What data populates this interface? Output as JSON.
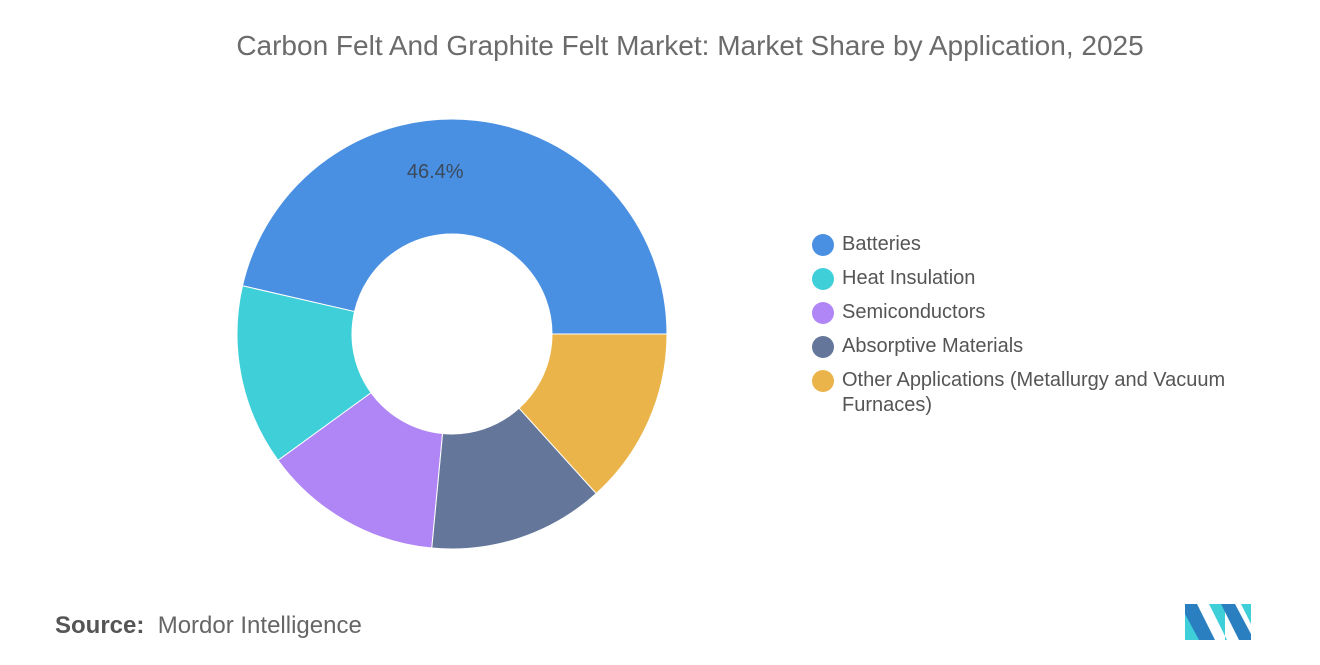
{
  "chart_data": {
    "type": "pie",
    "donut": true,
    "title": "Carbon Felt And Graphite Felt Market: Market Share by Application, 2025",
    "categories": [
      "Batteries",
      "Heat Insulation",
      "Semiconductors",
      "Absorptive Materials",
      "Other Applications (Metallurgy and Vacuum Furnaces)"
    ],
    "values": [
      46.4,
      13.6,
      13.5,
      13.2,
      13.3
    ],
    "colors": [
      "#4a90e2",
      "#3ecfd9",
      "#b085f5",
      "#64779a",
      "#ebb44a"
    ],
    "data_labels": [
      "46.4%",
      "",
      "",
      "",
      ""
    ],
    "legend_position": "right"
  },
  "source": {
    "label": "Source:",
    "value": "Mordor Intelligence"
  }
}
